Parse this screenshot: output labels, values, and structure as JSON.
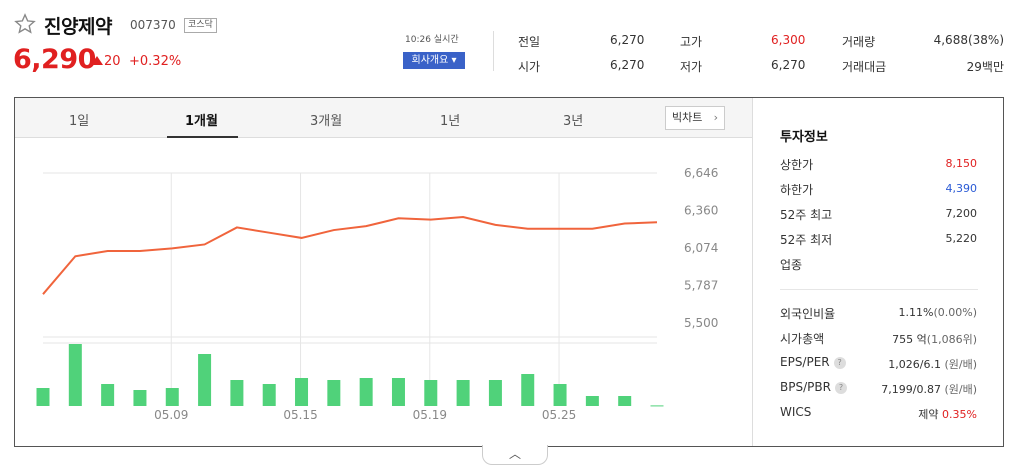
{
  "stock": {
    "name": "진양제약",
    "code": "007370",
    "market": "코스닥",
    "price": "6,290",
    "change": "20",
    "change_pct": "+0.32%"
  },
  "header": {
    "realtime_label": "10:26 실시간",
    "company_button": "회사개요 ▾"
  },
  "quotes": {
    "prev_label": "전일",
    "prev_value": "6,270",
    "open_label": "시가",
    "open_value": "6,270",
    "high_label": "고가",
    "high_value": "6,300",
    "low_label": "저가",
    "low_value": "6,270",
    "volume_label": "거래량",
    "volume_value": "4,688(38%)",
    "amount_label": "거래대금",
    "amount_value": "29백만"
  },
  "tabs": [
    {
      "label": "1일"
    },
    {
      "label": "1개월",
      "active": true
    },
    {
      "label": "3개월"
    },
    {
      "label": "1년"
    },
    {
      "label": "3년"
    }
  ],
  "bigchart_label": "빅차트",
  "info": {
    "title": "투자정보",
    "upper_label": "상한가",
    "upper_value": "8,150",
    "lower_label": "하한가",
    "lower_value": "4,390",
    "high52_label": "52주 최고",
    "high52_value": "7,200",
    "low52_label": "52주 최저",
    "low52_value": "5,220",
    "industry_label": "업종",
    "foreign_label": "외국인비율",
    "foreign_value": "1.11%",
    "foreign_sub": "(0.00%)",
    "cap_label": "시가총액",
    "cap_value": "755",
    "cap_unit": "억",
    "cap_sub": "(1,086위)",
    "eps_label": "EPS/PER",
    "eps_value": "1,026/6.1",
    "eps_unit": "(원/배)",
    "bps_label": "BPS/PBR",
    "bps_value": "7,199/0.87",
    "bps_unit": "(원/배)",
    "wics_label": "WICS",
    "wics_value": "제약",
    "wics_pct": "0.35%"
  },
  "chart_data": {
    "type": "line",
    "x_ticks": [
      "05.09",
      "05.15",
      "05.19",
      "05.25"
    ],
    "y_ticks": [
      "6,646",
      "6,360",
      "6,074",
      "5,787",
      "5,500"
    ],
    "ylim": [
      5500,
      6646
    ],
    "price": [
      5720,
      6010,
      6050,
      6050,
      6070,
      6100,
      6230,
      6190,
      6150,
      6210,
      6240,
      6300,
      6290,
      6310,
      6250,
      6220,
      6220,
      6220,
      6260,
      6270
    ],
    "volume": [
      9,
      31,
      11,
      8,
      9,
      26,
      13,
      11,
      14,
      13,
      14,
      14,
      13,
      13,
      13,
      16,
      11,
      5,
      5,
      0.3
    ],
    "line_color": "#f0643c",
    "bar_color": "#50d27a"
  }
}
